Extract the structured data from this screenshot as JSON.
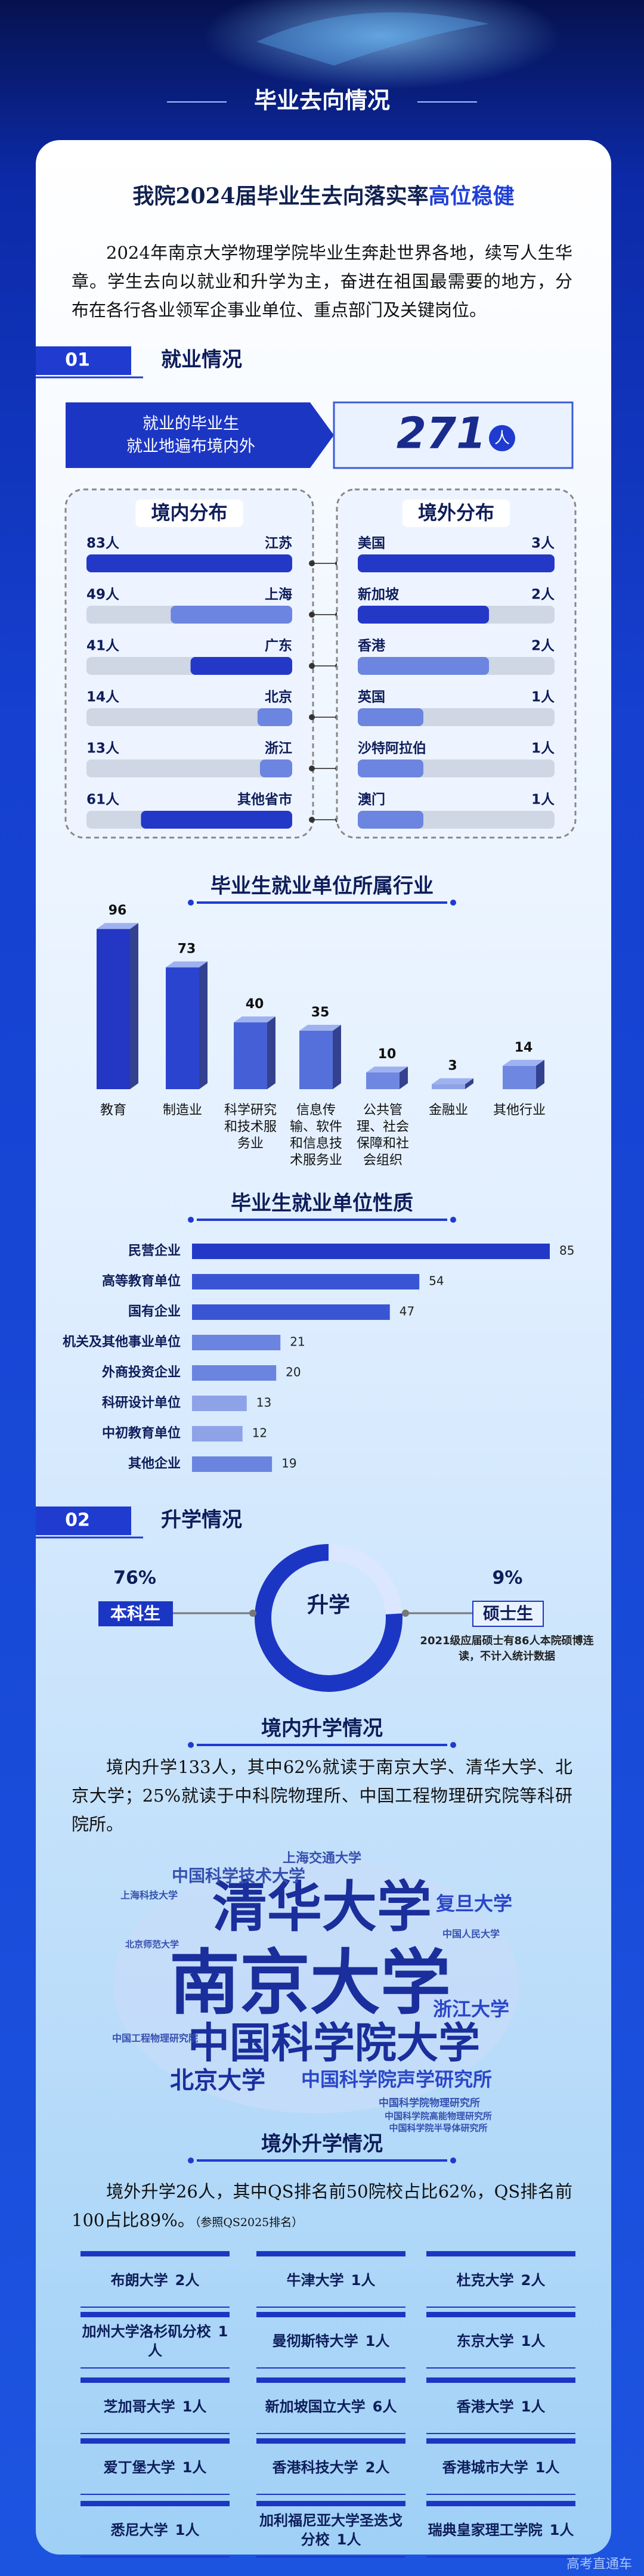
{
  "header": {
    "title": "毕业去向情况"
  },
  "headline": {
    "text": "我院2024届毕业生去向落实率",
    "highlight": "高位稳健"
  },
  "intro": "2024年南京大学物理学院毕业生奔赴世界各地，续写人生华章。学生去向以就业和升学为主，奋进在祖国最需要的地方，分布在各行各业领军企事业单位、重点部门及关键岗位。",
  "employment": {
    "number": "01",
    "title": "就业情况",
    "total": {
      "lines": [
        "就业的毕业生",
        "就业地遍布境内外"
      ],
      "value": 271,
      "unit": "人"
    },
    "domestic": {
      "title": "境内分布",
      "categories": [
        "江苏",
        "上海",
        "广东",
        "北京",
        "浙江",
        "其他省市"
      ],
      "values": [
        83,
        49,
        41,
        14,
        13,
        61
      ],
      "value_labels": [
        "83人",
        "49人",
        "41人",
        "14人",
        "13人",
        "61人"
      ],
      "colors": [
        "#2438c8",
        "#6b85e0",
        "#2438c8",
        "#6b85e0",
        "#6b85e0",
        "#2438c8"
      ]
    },
    "overseas": {
      "title": "境外分布",
      "categories": [
        "美国",
        "新加坡",
        "香港",
        "英国",
        "沙特阿拉伯",
        "澳门"
      ],
      "values": [
        3,
        2,
        2,
        1,
        1,
        1
      ],
      "value_labels": [
        "3人",
        "2人",
        "2人",
        "1人",
        "1人",
        "1人"
      ],
      "colors": [
        "#2438c8",
        "#2438c8",
        "#6b85e0",
        "#6b85e0",
        "#6b85e0",
        "#6b85e0"
      ]
    }
  },
  "industry": {
    "type": "bar3d",
    "title": "毕业生就业单位所属行业",
    "categories": [
      "教育",
      "制造业",
      "科学研究和技术服务业",
      "信息传输、软件和信息技术服务业",
      "公共管理、社会保障和社会组织",
      "金融业",
      "其他行业"
    ],
    "values": [
      96,
      73,
      40,
      35,
      10,
      3,
      14
    ],
    "colors": [
      "#2336c4",
      "#2b44cf",
      "#4560d6",
      "#5570da",
      "#6e88e2",
      "#8ea2e8",
      "#6e88e2"
    ]
  },
  "unit_nature": {
    "type": "hbar",
    "title": "毕业生就业单位性质",
    "categories": [
      "民营企业",
      "高等教育单位",
      "国有企业",
      "机关及其他事业单位",
      "外商投资企业",
      "科研设计单位",
      "中初教育单位",
      "其他企业"
    ],
    "values": [
      85,
      54,
      47,
      21,
      20,
      13,
      12,
      19
    ],
    "colors": [
      "#2438c8",
      "#3a55d4",
      "#3a55d4",
      "#6a84e0",
      "#6a84e0",
      "#8ea2e8",
      "#8ea2e8",
      "#6a84e0"
    ]
  },
  "further_study": {
    "number": "02",
    "title": "升学情况",
    "center": "升学",
    "undergrad": {
      "label": "本科生",
      "value": 76,
      "value_label": "76%"
    },
    "master": {
      "label": "硕士生",
      "value": 9,
      "value_label": "9%",
      "note": "2021级应届硕士有86人本院硕博连读，不计入统计数据"
    }
  },
  "domestic_study": {
    "title": "境内升学情况",
    "text": "境内升学133人，其中62%就读于南京大学、清华大学、北京大学；25%就读于中科院物理所、中国工程物理研究院等科研院所。",
    "word_cloud": [
      "清华大学",
      "南京大学",
      "中国科学院大学",
      "复旦大学",
      "浙江大学",
      "北京大学",
      "中国科学院声学研究所",
      "中国科学技术大学",
      "上海交通大学",
      "中国科学院物理研究所",
      "中国科学院高能物理研究所",
      "中国科学院半导体研究所",
      "中国工程物理研究院",
      "上海科技大学",
      "中国人民大学",
      "北京师范大学"
    ]
  },
  "overseas_study": {
    "title": "境外升学情况",
    "text": "境外升学26人，其中QS排名前50院校占比62%，QS排名前100占比89%。",
    "note": "（参照QS2025排名）",
    "schools": [
      {
        "name": "布朗大学",
        "count": "2人"
      },
      {
        "name": "牛津大学",
        "count": "1人"
      },
      {
        "name": "杜克大学",
        "count": "2人"
      },
      {
        "name": "加州大学洛杉矶分校",
        "count": "1人"
      },
      {
        "name": "曼彻斯特大学",
        "count": "1人"
      },
      {
        "name": "东京大学",
        "count": "1人"
      },
      {
        "name": "芝加哥大学",
        "count": "1人"
      },
      {
        "name": "新加坡国立大学",
        "count": "6人"
      },
      {
        "name": "香港大学",
        "count": "1人"
      },
      {
        "name": "爱丁堡大学",
        "count": "1人"
      },
      {
        "name": "香港科技大学",
        "count": "2人"
      },
      {
        "name": "香港城市大学",
        "count": "1人"
      },
      {
        "name": "悉尼大学",
        "count": "1人"
      },
      {
        "name": "加利福尼亚大学圣迭戈分校",
        "count": "1人"
      },
      {
        "name": "瑞典皇家理工学院",
        "count": "1人"
      }
    ]
  },
  "watermark": "高考直通车"
}
